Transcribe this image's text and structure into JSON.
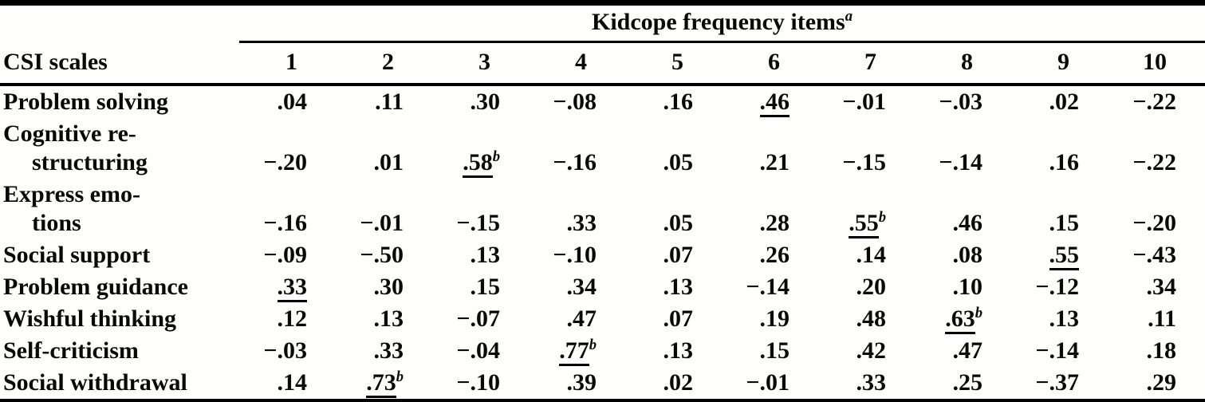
{
  "table": {
    "spanner_label": "Kidcope frequency items",
    "spanner_sup": "a",
    "stub_header": "CSI scales",
    "columns": [
      "1",
      "2",
      "3",
      "4",
      "5",
      "6",
      "7",
      "8",
      "9",
      "10"
    ],
    "rows": [
      {
        "label_lines": [
          "Problem solving"
        ],
        "cells": [
          {
            "v": ".04"
          },
          {
            "v": ".11"
          },
          {
            "v": ".30"
          },
          {
            "v": "−.08"
          },
          {
            "v": ".16"
          },
          {
            "v": ".46",
            "u": true
          },
          {
            "v": "−.01"
          },
          {
            "v": "−.03"
          },
          {
            "v": ".02"
          },
          {
            "v": "−.22"
          }
        ]
      },
      {
        "label_lines": [
          "Cognitive re-",
          "structuring"
        ],
        "cells": [
          {
            "v": "−.20"
          },
          {
            "v": ".01"
          },
          {
            "v": ".58",
            "u": true,
            "sup": "b"
          },
          {
            "v": "−.16"
          },
          {
            "v": ".05"
          },
          {
            "v": ".21"
          },
          {
            "v": "−.15"
          },
          {
            "v": "−.14"
          },
          {
            "v": ".16"
          },
          {
            "v": "−.22"
          }
        ]
      },
      {
        "label_lines": [
          "Express emo-",
          "tions"
        ],
        "cells": [
          {
            "v": "−.16"
          },
          {
            "v": "−.01"
          },
          {
            "v": "−.15"
          },
          {
            "v": ".33"
          },
          {
            "v": ".05"
          },
          {
            "v": ".28"
          },
          {
            "v": ".55",
            "u": true,
            "sup": "b"
          },
          {
            "v": ".46"
          },
          {
            "v": ".15"
          },
          {
            "v": "−.20"
          }
        ]
      },
      {
        "label_lines": [
          "Social support"
        ],
        "cells": [
          {
            "v": "−.09"
          },
          {
            "v": "−.50"
          },
          {
            "v": ".13"
          },
          {
            "v": "−.10"
          },
          {
            "v": ".07"
          },
          {
            "v": ".26"
          },
          {
            "v": ".14"
          },
          {
            "v": ".08"
          },
          {
            "v": ".55",
            "u": true
          },
          {
            "v": "−.43"
          }
        ]
      },
      {
        "label_lines": [
          "Problem guidance"
        ],
        "cells": [
          {
            "v": ".33",
            "u": true
          },
          {
            "v": ".30"
          },
          {
            "v": ".15"
          },
          {
            "v": ".34"
          },
          {
            "v": ".13"
          },
          {
            "v": "−.14"
          },
          {
            "v": ".20"
          },
          {
            "v": ".10"
          },
          {
            "v": "−.12"
          },
          {
            "v": ".34"
          }
        ]
      },
      {
        "label_lines": [
          "Wishful thinking"
        ],
        "cells": [
          {
            "v": ".12"
          },
          {
            "v": ".13"
          },
          {
            "v": "−.07"
          },
          {
            "v": ".47"
          },
          {
            "v": ".07"
          },
          {
            "v": ".19"
          },
          {
            "v": ".48"
          },
          {
            "v": ".63",
            "u": true,
            "sup": "b"
          },
          {
            "v": ".13"
          },
          {
            "v": ".11"
          }
        ]
      },
      {
        "label_lines": [
          "Self-criticism"
        ],
        "cells": [
          {
            "v": "−.03"
          },
          {
            "v": ".33"
          },
          {
            "v": "−.04"
          },
          {
            "v": ".77",
            "u": true,
            "sup": "b"
          },
          {
            "v": ".13"
          },
          {
            "v": ".15"
          },
          {
            "v": ".42"
          },
          {
            "v": ".47"
          },
          {
            "v": "−.14"
          },
          {
            "v": ".18"
          }
        ]
      },
      {
        "label_lines": [
          "Social withdrawal"
        ],
        "cells": [
          {
            "v": ".14"
          },
          {
            "v": ".73",
            "u": true,
            "sup": "b"
          },
          {
            "v": "−.10"
          },
          {
            "v": ".39"
          },
          {
            "v": ".02"
          },
          {
            "v": "−.01"
          },
          {
            "v": ".33"
          },
          {
            "v": ".25"
          },
          {
            "v": "−.37"
          },
          {
            "v": ".29"
          }
        ]
      }
    ]
  }
}
